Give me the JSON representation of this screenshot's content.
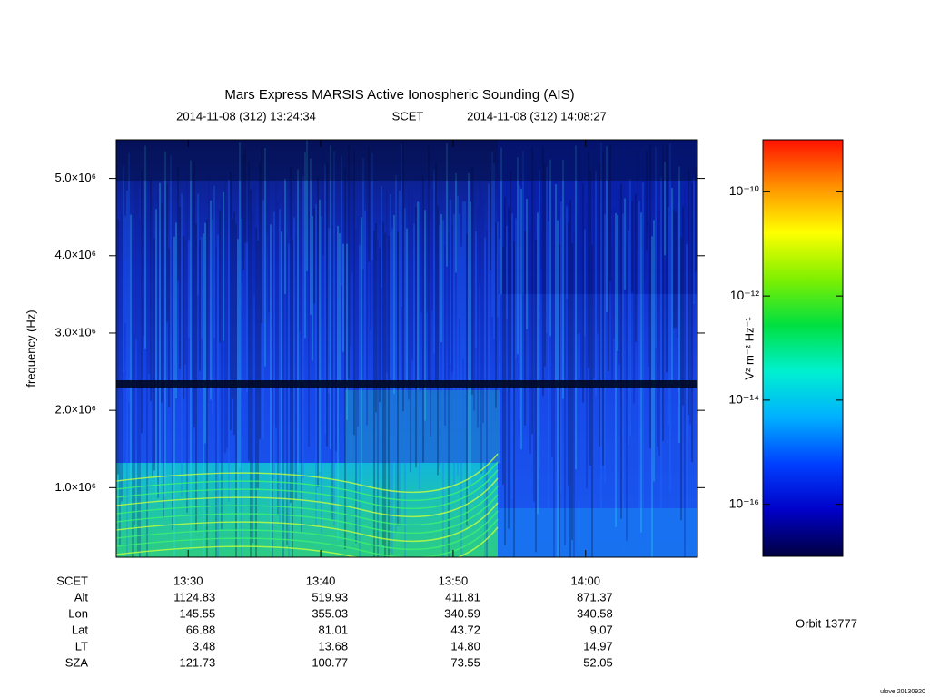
{
  "chart_data": {
    "type": "spectrogram",
    "title": "Mars Express MARSIS Active Ionospheric Sounding (AIS)",
    "start_label": "2014-11-08 (312) 13:24:34",
    "time_system": "SCET",
    "end_label": "2014-11-08 (312) 14:08:27",
    "y_label": "frequency (Hz)",
    "xlim": [
      804.567,
      848.45
    ],
    "xticks": [
      {
        "value": 810,
        "label": "13:30"
      },
      {
        "value": 820,
        "label": "13:40"
      },
      {
        "value": 830,
        "label": "13:50"
      },
      {
        "value": 840,
        "label": "14:00"
      }
    ],
    "ylim": [
      100000,
      5500000
    ],
    "yticks": [
      {
        "value": 1000000,
        "label": "1.0×10⁶"
      },
      {
        "value": 2000000,
        "label": "2.0×10⁶"
      },
      {
        "value": 3000000,
        "label": "3.0×10⁶"
      },
      {
        "value": 4000000,
        "label": "4.0×10⁶"
      },
      {
        "value": 5000000,
        "label": "5.0×10⁶"
      }
    ],
    "colorbar": {
      "label": "V² m⁻² Hz⁻¹",
      "log_scale": true,
      "lim": [
        1e-17,
        1e-09
      ],
      "ticks": [
        {
          "value": 1e-16,
          "label": "10⁻¹⁶"
        },
        {
          "value": 1e-14,
          "label": "10⁻¹⁴"
        },
        {
          "value": 1e-12,
          "label": "10⁻¹²"
        },
        {
          "value": 1e-10,
          "label": "10⁻¹⁰"
        }
      ],
      "colormap": [
        "#000040",
        "#0000c8",
        "#0040ff",
        "#00b0ff",
        "#00f0d0",
        "#00e040",
        "#80f000",
        "#ffff00",
        "#ff9000",
        "#ff1000"
      ]
    },
    "ephemeris": {
      "row_label_time": "SCET",
      "rows": [
        {
          "label": "Alt",
          "values": [
            "1124.83",
            "519.93",
            "411.81",
            "871.37"
          ]
        },
        {
          "label": "Lon",
          "values": [
            "145.55",
            "355.03",
            "340.59",
            "340.58"
          ]
        },
        {
          "label": "Lat",
          "values": [
            "66.88",
            "81.01",
            "43.72",
            "9.07"
          ]
        },
        {
          "label": "LT",
          "values": [
            "3.48",
            "13.68",
            "14.80",
            "14.97"
          ]
        },
        {
          "label": "SZA",
          "values": [
            "121.73",
            "100.77",
            "73.55",
            "52.05"
          ]
        }
      ]
    },
    "orbit": "Orbit 13777",
    "footer": "ulove 20130920"
  }
}
